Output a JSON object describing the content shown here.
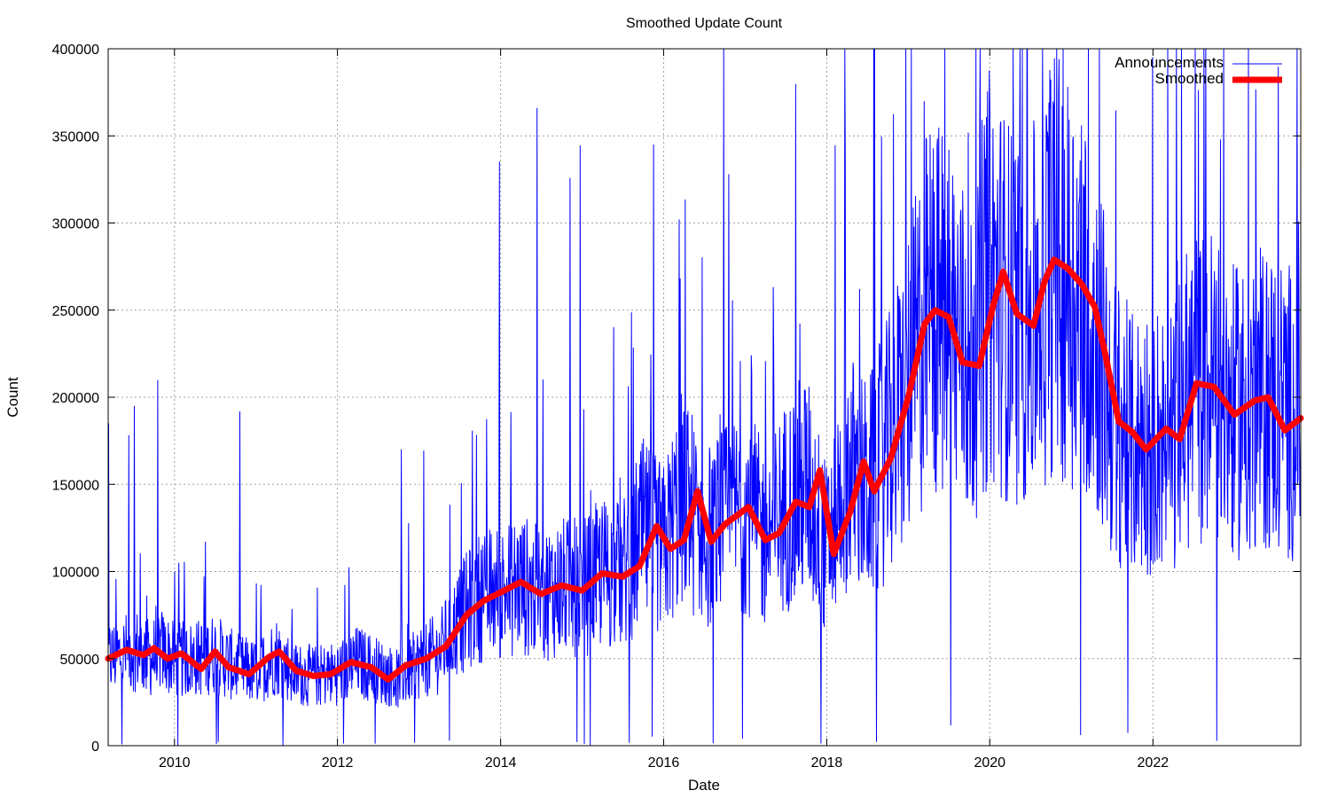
{
  "chart_data": {
    "type": "line",
    "title": "Smoothed Update Count",
    "xlabel": "Date",
    "ylabel": "Count",
    "grid": true,
    "legend_position": "top-right",
    "xlim": [
      "2009-03-10",
      "2023-10-25"
    ],
    "ylim": [
      0,
      400000
    ],
    "x_ticks": [
      "2010",
      "2012",
      "2014",
      "2016",
      "2018",
      "2020",
      "2022"
    ],
    "y_ticks": [
      "0",
      "50000",
      "100000",
      "150000",
      "200000",
      "250000",
      "300000",
      "350000",
      "400000"
    ],
    "colors": {
      "announcements": "#0000ff",
      "smoothed": "#ff0000",
      "grid": "#a0a0a0"
    },
    "series": [
      {
        "name": "Announcements",
        "style": "thin-line",
        "note_values": "daily counts, dense noisy line; sampled approximately",
        "x": [
          "2009-03-10",
          "2009-05-15",
          "2009-07-01",
          "2009-09-15",
          "2009-11-01",
          "2010-01-01",
          "2010-04-01",
          "2010-07-01",
          "2010-10-01",
          "2011-01-01",
          "2011-04-01",
          "2011-07-01",
          "2011-10-01",
          "2012-01-01",
          "2012-04-01",
          "2012-07-01",
          "2012-10-01",
          "2013-01-01",
          "2013-04-01",
          "2013-07-01",
          "2013-10-01",
          "2014-01-01",
          "2014-04-01",
          "2014-07-01",
          "2014-10-01",
          "2015-01-01",
          "2015-04-01",
          "2015-07-01",
          "2015-10-01",
          "2016-01-01",
          "2016-04-01",
          "2016-07-01",
          "2016-10-01",
          "2017-01-01",
          "2017-04-01",
          "2017-07-01",
          "2017-10-01",
          "2018-01-01",
          "2018-04-01",
          "2018-07-01",
          "2018-10-01",
          "2019-01-01",
          "2019-04-01",
          "2019-07-01",
          "2019-10-01",
          "2020-01-01",
          "2020-04-01",
          "2020-07-01",
          "2020-10-01",
          "2021-01-01",
          "2021-04-01",
          "2021-07-01",
          "2021-10-01",
          "2022-01-01",
          "2022-04-01",
          "2022-07-01",
          "2022-10-01",
          "2023-01-01",
          "2023-04-01",
          "2023-07-01",
          "2023-10-25"
        ],
        "y": [
          50000,
          52000,
          56000,
          50000,
          55000,
          49000,
          50000,
          53000,
          45000,
          42000,
          52000,
          41000,
          40000,
          42000,
          48000,
          43000,
          38000,
          48000,
          53000,
          72000,
          86000,
          88000,
          93000,
          87000,
          91000,
          90000,
          99000,
          98000,
          122000,
          112000,
          145000,
          118000,
          128000,
          137000,
          118000,
          138000,
          150000,
          112000,
          160000,
          145000,
          170000,
          205000,
          250000,
          248000,
          218000,
          270000,
          248000,
          242000,
          278000,
          268000,
          252000,
          190000,
          172000,
          178000,
          176000,
          208000,
          207000,
          190000,
          198000,
          198000,
          188000
        ]
      },
      {
        "name": "Smoothed",
        "style": "thick-line",
        "x": [
          "2009-03-10",
          "2009-06-01",
          "2009-08-15",
          "2009-10-01",
          "2009-12-01",
          "2010-02-01",
          "2010-05-01",
          "2010-07-01",
          "2010-09-01",
          "2010-12-01",
          "2011-03-01",
          "2011-04-15",
          "2011-07-01",
          "2011-09-15",
          "2011-12-01",
          "2012-03-01",
          "2012-06-01",
          "2012-08-15",
          "2012-11-01",
          "2013-02-01",
          "2013-05-01",
          "2013-08-01",
          "2013-10-15",
          "2014-01-01",
          "2014-04-01",
          "2014-07-01",
          "2014-10-01",
          "2015-01-01",
          "2015-04-01",
          "2015-07-01",
          "2015-09-15",
          "2015-12-01",
          "2016-02-01",
          "2016-04-01",
          "2016-06-01",
          "2016-08-01",
          "2016-10-01",
          "2017-01-15",
          "2017-04-01",
          "2017-06-01",
          "2017-08-15",
          "2017-10-15",
          "2017-12-01",
          "2018-02-01",
          "2018-04-15",
          "2018-06-15",
          "2018-08-01",
          "2018-10-15",
          "2019-01-01",
          "2019-03-15",
          "2019-05-01",
          "2019-07-01",
          "2019-09-01",
          "2019-11-15",
          "2020-01-15",
          "2020-03-01",
          "2020-05-01",
          "2020-07-15",
          "2020-09-01",
          "2020-10-15",
          "2020-12-15",
          "2021-02-15",
          "2021-04-15",
          "2021-06-01",
          "2021-08-01",
          "2021-10-01",
          "2021-12-01",
          "2022-03-01",
          "2022-05-01",
          "2022-07-15",
          "2022-10-01",
          "2023-01-01",
          "2023-04-01",
          "2023-06-01",
          "2023-08-15",
          "2023-10-25"
        ],
        "y": [
          50000,
          55000,
          52000,
          56000,
          50000,
          53000,
          44000,
          54000,
          45000,
          41000,
          51000,
          54000,
          43000,
          40000,
          41000,
          48000,
          45000,
          38000,
          46000,
          50000,
          57000,
          75000,
          83000,
          88000,
          94000,
          87000,
          92000,
          89000,
          99000,
          97000,
          103000,
          126000,
          113000,
          118000,
          146000,
          117000,
          127000,
          137000,
          118000,
          122000,
          140000,
          137000,
          158000,
          110000,
          134000,
          163000,
          146000,
          165000,
          200000,
          242000,
          250000,
          246000,
          220000,
          218000,
          252000,
          272000,
          248000,
          241000,
          266000,
          279000,
          274000,
          265000,
          252000,
          225000,
          186000,
          180000,
          170000,
          182000,
          176000,
          208000,
          206000,
          190000,
          198000,
          200000,
          181000,
          188000
        ]
      }
    ]
  }
}
